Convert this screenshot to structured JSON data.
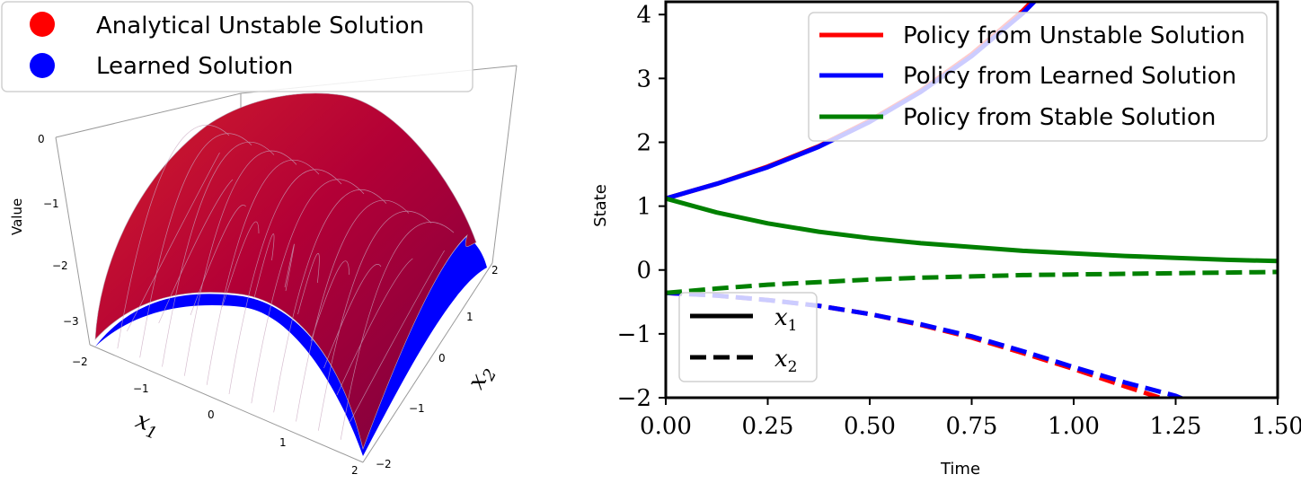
{
  "chart_data": [
    {
      "type": "surface",
      "zlabel": "Value",
      "xlabel": "x1",
      "ylabel": "x2",
      "x_ticks": [
        "−2",
        "−1",
        "0",
        "1",
        "2"
      ],
      "y_ticks": [
        "−2",
        "−1",
        "0",
        "1",
        "2"
      ],
      "z_ticks": [
        "0",
        "−1",
        "−2",
        "−3"
      ],
      "xlim": [
        -2,
        2
      ],
      "ylim": [
        -2,
        2
      ],
      "zlim": [
        -3.5,
        0
      ],
      "legend": {
        "placement": "top-left",
        "entries": [
          {
            "label": "Analytical Unstable Solution",
            "color": "#ff0000"
          },
          {
            "label": "Learned Solution",
            "color": "#0000ff"
          }
        ]
      },
      "surfaces": [
        {
          "name": "Analytical Unstable Solution",
          "color": "#c0002a",
          "formula_hint": "concave paraboloid, peak ≈ 0 at origin"
        },
        {
          "name": "Learned Solution",
          "color": "#0000ff"
        }
      ]
    },
    {
      "type": "line",
      "xlabel": "Time",
      "ylabel": "State",
      "xlim": [
        0,
        1.5
      ],
      "ylim": [
        -2,
        4.2
      ],
      "x_ticks": [
        "0.00",
        "0.25",
        "0.50",
        "0.75",
        "1.00",
        "1.25",
        "1.50"
      ],
      "y_ticks": [
        "−2",
        "−1",
        "0",
        "1",
        "2",
        "3",
        "4"
      ],
      "legend": {
        "placement": "top-right",
        "entries": [
          {
            "label": "Policy from Unstable Solution",
            "color": "#ff0000"
          },
          {
            "label": "Policy from Learned Solution",
            "color": "#0000ff"
          },
          {
            "label": "Policy from Stable Solution",
            "color": "#008000"
          }
        ]
      },
      "style_legend": {
        "placement": "bottom-left",
        "entries": [
          {
            "label": "x1",
            "style": "solid"
          },
          {
            "label": "x2",
            "style": "dashed"
          }
        ]
      },
      "series": [
        {
          "name": "Policy from Unstable Solution",
          "component": "x1",
          "color": "#ff0000",
          "style": "solid",
          "x": [
            0,
            0.125,
            0.25,
            0.375,
            0.5,
            0.625,
            0.75,
            0.875,
            0.95
          ],
          "y": [
            1.12,
            1.35,
            1.62,
            1.94,
            2.34,
            2.81,
            3.38,
            4.06,
            4.55
          ]
        },
        {
          "name": "Policy from Learned Solution",
          "component": "x1",
          "color": "#0000ff",
          "style": "solid",
          "x": [
            0,
            0.125,
            0.25,
            0.375,
            0.5,
            0.625,
            0.75,
            0.875,
            0.95
          ],
          "y": [
            1.12,
            1.35,
            1.61,
            1.93,
            2.32,
            2.79,
            3.35,
            4.02,
            4.5
          ]
        },
        {
          "name": "Policy from Stable Solution",
          "component": "x1",
          "color": "#008000",
          "style": "solid",
          "x": [
            0,
            0.125,
            0.25,
            0.375,
            0.5,
            0.625,
            0.75,
            0.875,
            1.0,
            1.125,
            1.25,
            1.375,
            1.5
          ],
          "y": [
            1.12,
            0.9,
            0.73,
            0.6,
            0.5,
            0.42,
            0.36,
            0.3,
            0.26,
            0.22,
            0.19,
            0.16,
            0.14
          ]
        },
        {
          "name": "Policy from Unstable Solution",
          "component": "x2",
          "color": "#ff0000",
          "style": "dashed",
          "x": [
            0,
            0.125,
            0.25,
            0.375,
            0.5,
            0.625,
            0.75,
            0.875,
            1.0,
            1.125,
            1.25
          ],
          "y": [
            -0.36,
            -0.4,
            -0.47,
            -0.56,
            -0.69,
            -0.86,
            -1.06,
            -1.3,
            -1.55,
            -1.82,
            -2.08
          ]
        },
        {
          "name": "Policy from Learned Solution",
          "component": "x2",
          "color": "#0000ff",
          "style": "dashed",
          "x": [
            0,
            0.125,
            0.25,
            0.375,
            0.5,
            0.625,
            0.75,
            0.875,
            1.0,
            1.125,
            1.25,
            1.28
          ],
          "y": [
            -0.36,
            -0.4,
            -0.47,
            -0.56,
            -0.69,
            -0.85,
            -1.04,
            -1.27,
            -1.52,
            -1.76,
            -1.97,
            -2.05
          ]
        },
        {
          "name": "Policy from Stable Solution",
          "component": "x2",
          "color": "#008000",
          "style": "dashed",
          "x": [
            0,
            0.125,
            0.25,
            0.375,
            0.5,
            0.625,
            0.75,
            0.875,
            1.0,
            1.125,
            1.25,
            1.375,
            1.5
          ],
          "y": [
            -0.36,
            -0.29,
            -0.23,
            -0.19,
            -0.15,
            -0.12,
            -0.1,
            -0.08,
            -0.07,
            -0.06,
            -0.05,
            -0.04,
            -0.03
          ]
        }
      ]
    }
  ]
}
